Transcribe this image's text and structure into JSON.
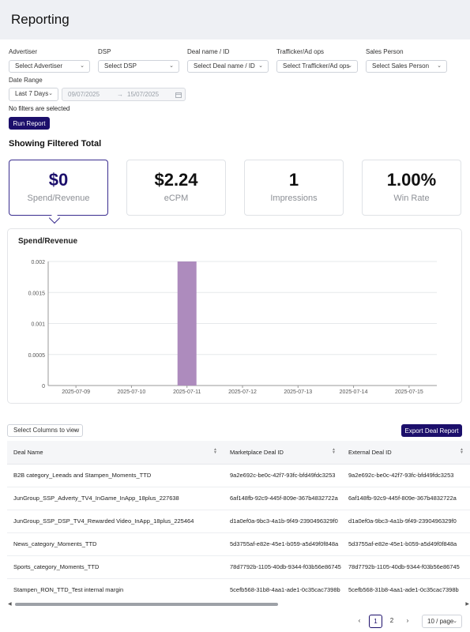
{
  "header": {
    "title": "Reporting"
  },
  "filters": {
    "advertiser": {
      "label": "Advertiser",
      "value": "Select Advertiser"
    },
    "dsp": {
      "label": "DSP",
      "value": "Select DSP"
    },
    "deal": {
      "label": "Deal name / ID",
      "value": "Select Deal name / ID"
    },
    "trafficker": {
      "label": "Trafficker/Ad ops",
      "value": "Select Trafficker/Ad ops"
    },
    "sales": {
      "label": "Sales Person",
      "value": "Select Sales Person"
    },
    "date_range": {
      "label": "Date Range",
      "preset": "Last 7 Days",
      "start": "09/07/2025",
      "end": "15/07/2025"
    },
    "status": "No filters are selected",
    "run_label": "Run Report"
  },
  "summary": {
    "title": "Showing Filtered Total",
    "cards": [
      {
        "value": "$0",
        "label": "Spend/Revenue"
      },
      {
        "value": "$2.24",
        "label": "eCPM"
      },
      {
        "value": "1",
        "label": "Impressions"
      },
      {
        "value": "1.00%",
        "label": "Win Rate"
      }
    ]
  },
  "chart_data": {
    "type": "bar",
    "title": "Spend/Revenue",
    "categories": [
      "2025-07-09",
      "2025-07-10",
      "2025-07-11",
      "2025-07-12",
      "2025-07-13",
      "2025-07-14",
      "2025-07-15"
    ],
    "values": [
      0,
      0,
      0.002,
      0,
      0,
      0,
      0
    ],
    "y_ticks": [
      "0",
      "0.0005",
      "0.001",
      "0.0015",
      "0.002"
    ],
    "ylim": [
      0,
      0.002
    ],
    "bar_color": "#ad8bbd",
    "grid": true
  },
  "table_controls": {
    "columns_label": "Select Columns to view",
    "export_label": "Export Deal Report"
  },
  "table": {
    "headers": [
      "Deal Name",
      "Marketplace Deal ID",
      "External Deal ID"
    ],
    "rows": [
      [
        "B2B category_Leeads and Stampen_Moments_TTD",
        "9a2e692c-be0c-42f7-93fc-bfd49fdc3253",
        "9a2e692c-be0c-42f7-93fc-bfd49fdc3253"
      ],
      [
        "JunGroup_SSP_Adverty_TV4_InGame_InApp_18plus_227638",
        "6af148fb-92c9-445f-809e-367b4832722a",
        "6af148fb-92c9-445f-809e-367b4832722a"
      ],
      [
        "JunGroup_SSP_DSP_TV4_Rewarded Video_InApp_18plus_225464",
        "d1a0ef0a-9bc3-4a1b-9f49-2390496329f0",
        "d1a0ef0a-9bc3-4a1b-9f49-2390496329f0"
      ],
      [
        "News_category_Moments_TTD",
        "5d3755af-e82e-45e1-b059-a5d49f0f848a",
        "5d3755af-e82e-45e1-b059-a5d49f0f848a"
      ],
      [
        "Sports_category_Moments_TTD",
        "78d7792b-1105-40db-9344-f03b56e86745",
        "78d7792b-1105-40db-9344-f03b56e86745"
      ],
      [
        "Stampen_RON_TTD_Test internal margin",
        "5cefb568-31b8-4aa1-ade1-0c35cac7398b",
        "5cefb568-31b8-4aa1-ade1-0c35cac7398b"
      ]
    ]
  },
  "pagination": {
    "prev": "‹",
    "next": "›",
    "pages": [
      "1",
      "2"
    ],
    "current": "1",
    "page_size": "10 / page"
  },
  "colors": {
    "primary": "#1c0f6b",
    "header_bg": "#eef0f4"
  }
}
